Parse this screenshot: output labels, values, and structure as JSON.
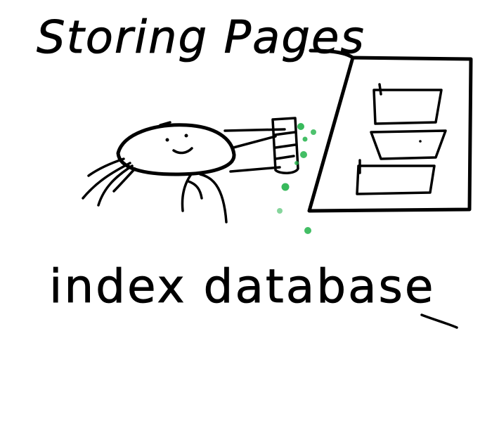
{
  "title": "Storing Pages",
  "caption": "index database",
  "colors": {
    "ink": "#000000",
    "spray": "#22b34a",
    "background": "#ffffff"
  }
}
